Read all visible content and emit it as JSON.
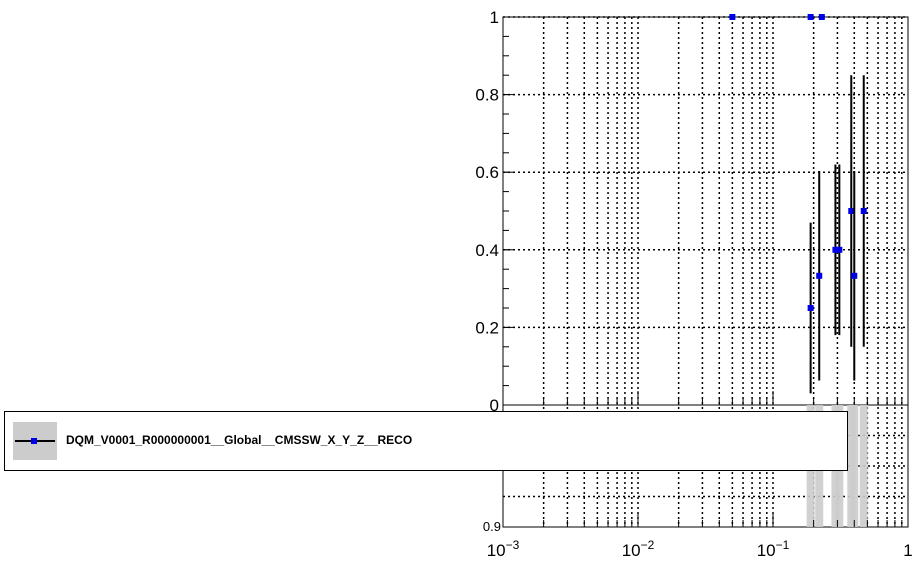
{
  "chart_data": {
    "type": "scatter",
    "x_scale": "log",
    "xlim": [
      0.001,
      1
    ],
    "ylim": [
      0,
      1
    ],
    "x_tick_labels": [
      {
        "base": "10",
        "exp": "−3",
        "value": 0.001
      },
      {
        "base": "10",
        "exp": "−2",
        "value": 0.01
      },
      {
        "base": "10",
        "exp": "−1",
        "value": 0.1
      },
      {
        "base": "1",
        "exp": "",
        "value": 1
      }
    ],
    "y_tick_labels": [
      "0",
      "0.2",
      "0.4",
      "0.6",
      "0.8",
      "1"
    ],
    "y_tick_values": [
      0,
      0.2,
      0.4,
      0.6,
      0.8,
      1.0
    ],
    "lower_pad_tick_label": "0.9",
    "grid": true,
    "series": [
      {
        "name": "DQM_V0001_R000000001__Global__CMSSW_X_Y_Z__RECO",
        "color": "#0000e6",
        "points": [
          {
            "x": 0.05,
            "y": 1.0,
            "err_low": 0.0,
            "err_high": 0.0
          },
          {
            "x": 0.19,
            "y": 1.0,
            "err_low": 0.0,
            "err_high": 0.0
          },
          {
            "x": 0.23,
            "y": 1.0,
            "err_low": 0.0,
            "err_high": 0.0
          },
          {
            "x": 0.19,
            "y": 0.25,
            "err_low": 0.22,
            "err_high": 0.22
          },
          {
            "x": 0.22,
            "y": 0.333,
            "err_low": 0.27,
            "err_high": 0.27
          },
          {
            "x": 0.29,
            "y": 0.4,
            "err_low": 0.22,
            "err_high": 0.22
          },
          {
            "x": 0.31,
            "y": 0.4,
            "err_low": 0.22,
            "err_high": 0.22
          },
          {
            "x": 0.38,
            "y": 0.5,
            "err_low": 0.35,
            "err_high": 0.35
          },
          {
            "x": 0.4,
            "y": 0.333,
            "err_low": 0.27,
            "err_high": 0.27
          },
          {
            "x": 0.47,
            "y": 0.5,
            "err_low": 0.35,
            "err_high": 0.35
          }
        ]
      }
    ],
    "legend_position": "bottom-left"
  }
}
